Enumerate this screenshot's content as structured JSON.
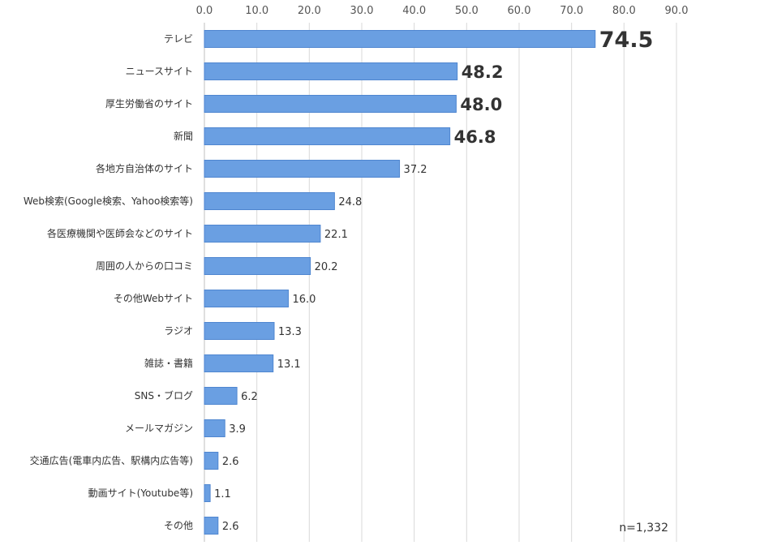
{
  "chart_data": {
    "type": "bar",
    "orientation": "horizontal",
    "categories": [
      "テレビ",
      "ニュースサイト",
      "厚生労働省のサイト",
      "新聞",
      "各地方自治体のサイト",
      "Web検索(Google検索、Yahoo検索等)",
      "各医療機関や医師会などのサイト",
      "周囲の人からの口コミ",
      "その他Webサイト",
      "ラジオ",
      "雑誌・書籍",
      "SNS・ブログ",
      "メールマガジン",
      "交通広告(電車内広告、駅構内広告等)",
      "動画サイト(Youtube等)",
      "その他"
    ],
    "values": [
      74.5,
      48.2,
      48.0,
      46.8,
      37.2,
      24.8,
      22.1,
      20.2,
      16.0,
      13.3,
      13.1,
      6.2,
      3.9,
      2.6,
      1.1,
      2.6
    ],
    "value_labels": [
      "74.5",
      "48.2",
      "48.0",
      "46.8",
      "37.2",
      "24.8",
      "22.1",
      "20.2",
      "16.0",
      "13.3",
      "13.1",
      "6.2",
      "3.9",
      "2.6",
      "1.1",
      "2.6"
    ],
    "highlighted_count": 4,
    "xlim": [
      0,
      90
    ],
    "xticks": [
      "0.0",
      "10.0",
      "20.0",
      "30.0",
      "40.0",
      "50.0",
      "60.0",
      "70.0",
      "80.0",
      "90.0"
    ],
    "x_axis_position": "top",
    "grid": true,
    "bar_color": "#6a9fe2",
    "bar_border_color": "#4f86d0",
    "grid_color": "#d9d9d9",
    "annotation": "n=1,332",
    "title": "",
    "xlabel": "",
    "ylabel": ""
  }
}
